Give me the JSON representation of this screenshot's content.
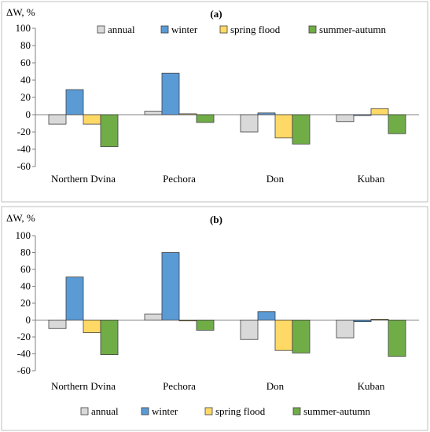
{
  "chart_data": [
    {
      "type": "bar",
      "panel_label": "(a)",
      "ylabel": "ΔW, %",
      "ylim": [
        -60,
        100
      ],
      "yticks": [
        -60,
        -40,
        -20,
        0,
        20,
        40,
        60,
        80,
        100
      ],
      "grid": false,
      "legend_position": "top",
      "categories": [
        "Northern Dvina",
        "Pechora",
        "Don",
        "Kuban"
      ],
      "series": [
        {
          "name": "annual",
          "color": "#d9d9d9",
          "values": [
            -11,
            4,
            -20,
            -8
          ]
        },
        {
          "name": "winter",
          "color": "#5b9bd5",
          "values": [
            29,
            48,
            2,
            -1
          ]
        },
        {
          "name": "spring flood",
          "color": "#ffd966",
          "values": [
            -11,
            1,
            -27,
            7
          ]
        },
        {
          "name": "summer-autumn",
          "color": "#70ad47",
          "values": [
            -37,
            -9,
            -34,
            -22
          ]
        }
      ]
    },
    {
      "type": "bar",
      "panel_label": "(b)",
      "ylabel": "ΔW, %",
      "ylim": [
        -60,
        100
      ],
      "yticks": [
        -60,
        -40,
        -20,
        0,
        20,
        40,
        60,
        80,
        100
      ],
      "grid": false,
      "legend_position": "bottom",
      "categories": [
        "Northern Dvina",
        "Pechora",
        "Don",
        "Kuban"
      ],
      "series": [
        {
          "name": "annual",
          "color": "#d9d9d9",
          "values": [
            -10,
            7,
            -23,
            -21
          ]
        },
        {
          "name": "winter",
          "color": "#5b9bd5",
          "values": [
            51,
            80,
            10,
            -2
          ]
        },
        {
          "name": "spring flood",
          "color": "#ffd966",
          "values": [
            -15,
            -1,
            -36,
            1
          ]
        },
        {
          "name": "summer-autumn",
          "color": "#70ad47",
          "values": [
            -41,
            -12,
            -39,
            -43
          ]
        }
      ]
    }
  ]
}
